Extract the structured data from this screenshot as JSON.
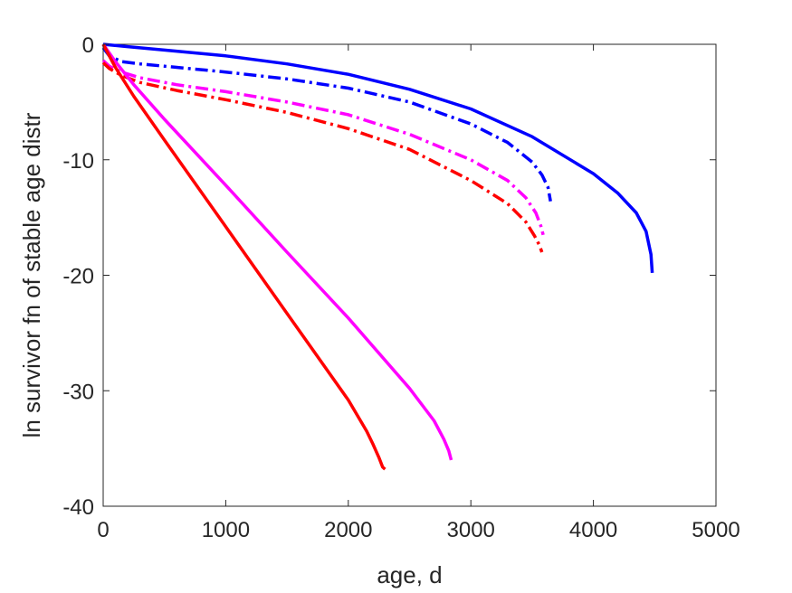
{
  "chart_data": {
    "type": "line",
    "title": "",
    "xlabel": "age, d",
    "ylabel": "ln survivor fn of stable age distr",
    "xlim": [
      0,
      5000
    ],
    "ylim": [
      -40,
      0
    ],
    "xticks": [
      0,
      1000,
      2000,
      3000,
      4000,
      5000
    ],
    "yticks": [
      0,
      -10,
      -20,
      -30,
      -40
    ],
    "xtick_labels": [
      "0",
      "1000",
      "2000",
      "3000",
      "4000",
      "5000"
    ],
    "ytick_labels": [
      "0",
      "-10",
      "-20",
      "-30",
      "-40"
    ],
    "grid": false,
    "legend": "none",
    "series": [
      {
        "color": "#0000ff",
        "style": "solid",
        "x": [
          0,
          200,
          500,
          1000,
          1500,
          2000,
          2500,
          3000,
          3500,
          4000,
          4200,
          4350,
          4430,
          4470,
          4480
        ],
        "y": [
          0,
          -0.2,
          -0.5,
          -1.0,
          -1.7,
          -2.6,
          -3.9,
          -5.6,
          -8.0,
          -11.2,
          -12.9,
          -14.6,
          -16.2,
          -18.2,
          -19.8
        ]
      },
      {
        "color": "#0000ff",
        "style": "dashdot",
        "x": [
          0,
          50,
          150,
          300,
          600,
          1000,
          1500,
          2000,
          2500,
          3000,
          3300,
          3500,
          3580,
          3630,
          3650
        ],
        "y": [
          -0.3,
          -1.0,
          -1.5,
          -1.7,
          -2.0,
          -2.4,
          -3.0,
          -3.8,
          -5.0,
          -6.9,
          -8.5,
          -10.2,
          -11.3,
          -12.4,
          -13.6
        ]
      },
      {
        "color": "#ff00ff",
        "style": "dashdot",
        "x": [
          0,
          50,
          150,
          300,
          600,
          1000,
          1500,
          2000,
          2500,
          3000,
          3300,
          3450,
          3530,
          3570,
          3590
        ],
        "y": [
          -1.4,
          -1.9,
          -2.4,
          -2.9,
          -3.5,
          -4.1,
          -5.0,
          -6.1,
          -7.8,
          -10.0,
          -11.8,
          -13.3,
          -14.6,
          -15.7,
          -16.5
        ]
      },
      {
        "color": "#ff0000",
        "style": "dashdot",
        "x": [
          0,
          50,
          150,
          300,
          600,
          1000,
          1500,
          2000,
          2500,
          3000,
          3300,
          3450,
          3520,
          3560,
          3580
        ],
        "y": [
          -1.6,
          -2.1,
          -2.7,
          -3.3,
          -4.0,
          -4.8,
          -5.9,
          -7.3,
          -9.1,
          -11.8,
          -13.8,
          -15.4,
          -16.6,
          -17.4,
          -18.0
        ]
      },
      {
        "color": "#ff00ff",
        "style": "solid",
        "x": [
          0,
          100,
          250,
          500,
          1000,
          1500,
          2000,
          2500,
          2700,
          2780,
          2820,
          2840
        ],
        "y": [
          0,
          -1.5,
          -3.5,
          -6.5,
          -12.2,
          -18.0,
          -23.7,
          -29.8,
          -32.6,
          -34.2,
          -35.2,
          -36.0
        ]
      },
      {
        "color": "#ff0000",
        "style": "solid",
        "x": [
          0,
          100,
          250,
          500,
          1000,
          1500,
          2000,
          2150,
          2200,
          2250,
          2280,
          2300
        ],
        "y": [
          0,
          -2.0,
          -4.5,
          -8.3,
          -15.8,
          -23.3,
          -30.8,
          -33.5,
          -34.6,
          -35.8,
          -36.6,
          -36.8
        ]
      }
    ]
  }
}
